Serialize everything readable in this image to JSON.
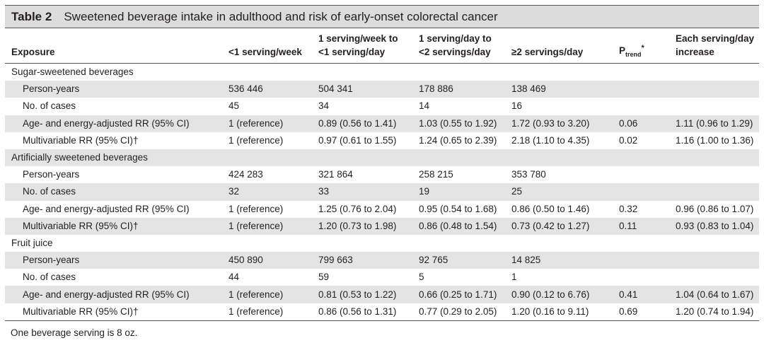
{
  "caption": {
    "label": "Table 2",
    "title": "Sweetened beverage intake in adulthood and risk of early-onset colorectal cancer"
  },
  "headers": {
    "exposure": "Exposure",
    "col1": "<1 serving/week",
    "col2_line1": "1 serving/week to",
    "col2_line2": "<1 serving/day",
    "col3_line1": "1 serving/day to",
    "col3_line2": "<2 servings/day",
    "col4": "≥2 servings/day",
    "ptrend_p": "P",
    "ptrend_sub": "trend",
    "ptrend_sup": "*",
    "col6_line1": "Each serving/day",
    "col6_line2": "increase"
  },
  "sections": [
    {
      "title": "Sugar-sweetened beverages",
      "rows": [
        {
          "label": "Person-years",
          "c1": "536 446",
          "c2": "504 341",
          "c3": "178 886",
          "c4": "138 469",
          "p": "",
          "inc": ""
        },
        {
          "label": "No. of cases",
          "c1": "45",
          "c2": "34",
          "c3": "14",
          "c4": "16",
          "p": "",
          "inc": ""
        },
        {
          "label": "Age- and energy-adjusted RR (95% CI)",
          "c1": "1 (reference)",
          "c2": "0.89 (0.56 to 1.41)",
          "c3": "1.03 (0.55 to 1.92)",
          "c4": "1.72 (0.93 to 3.20)",
          "p": "0.06",
          "inc": "1.11 (0.96 to 1.29)"
        },
        {
          "label": "Multivariable RR (95% CI)†",
          "c1": "1 (reference)",
          "c2": "0.97 (0.61 to 1.55)",
          "c3": "1.24 (0.65 to 2.39)",
          "c4": "2.18 (1.10 to 4.35)",
          "p": "0.02",
          "inc": "1.16 (1.00 to 1.36)"
        }
      ]
    },
    {
      "title": "Artificially sweetened beverages",
      "rows": [
        {
          "label": "Person-years",
          "c1": "424 283",
          "c2": "321 864",
          "c3": "258 215",
          "c4": "353 780",
          "p": "",
          "inc": ""
        },
        {
          "label": "No. of cases",
          "c1": "32",
          "c2": "33",
          "c3": "19",
          "c4": "25",
          "p": "",
          "inc": ""
        },
        {
          "label": "Age- and energy-adjusted RR (95% CI)",
          "c1": "1 (reference)",
          "c2": "1.25 (0.76 to 2.04)",
          "c3": "0.95 (0.54 to 1.68)",
          "c4": "0.86 (0.50 to 1.46)",
          "p": "0.32",
          "inc": "0.96 (0.86 to 1.07)"
        },
        {
          "label": "Multivariable RR (95% CI)†",
          "c1": "1 (reference)",
          "c2": "1.20 (0.73 to 1.98)",
          "c3": "0.86 (0.48 to 1.54)",
          "c4": "0.73 (0.42 to 1.27)",
          "p": "0.11",
          "inc": "0.93 (0.83 to 1.04)"
        }
      ]
    },
    {
      "title": "Fruit juice",
      "rows": [
        {
          "label": "Person-years",
          "c1": "450 890",
          "c2": "799 663",
          "c3": "92 765",
          "c4": "14 825",
          "p": "",
          "inc": ""
        },
        {
          "label": "No. of cases",
          "c1": "44",
          "c2": "59",
          "c3": "5",
          "c4": "1",
          "p": "",
          "inc": ""
        },
        {
          "label": "Age- and energy-adjusted RR (95% CI)",
          "c1": "1 (reference)",
          "c2": "0.81 (0.53 to 1.22)",
          "c3": "0.66 (0.25 to 1.71)",
          "c4": "0.90 (0.12 to 6.76)",
          "p": "0.41",
          "inc": "1.04 (0.64 to 1.67)"
        },
        {
          "label": "Multivariable RR (95% CI)†",
          "c1": "1 (reference)",
          "c2": "0.86 (0.56 to 1.31)",
          "c3": "0.77 (0.29 to 2.05)",
          "c4": "1.20 (0.16 to 9.11)",
          "p": "0.69",
          "inc": "1.20 (0.74 to 1.94)"
        }
      ]
    }
  ],
  "footnote": "One beverage serving is 8 oz."
}
